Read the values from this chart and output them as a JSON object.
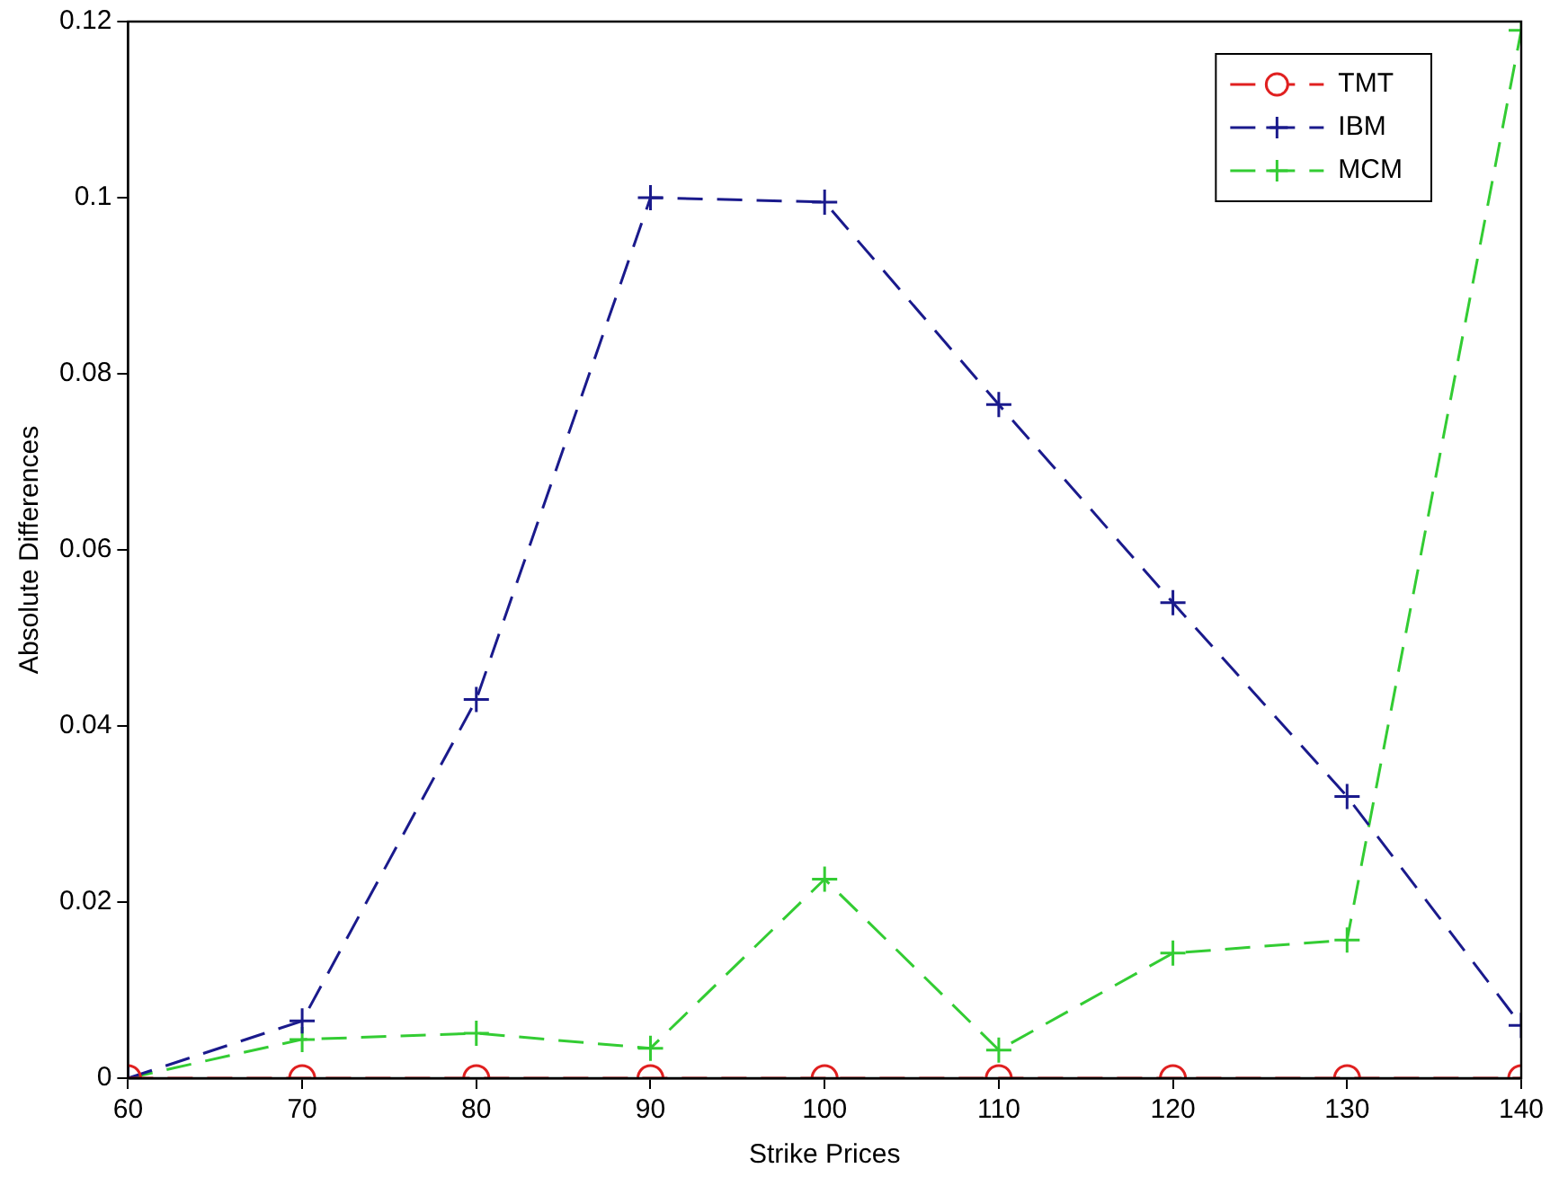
{
  "chart_data": {
    "type": "line",
    "xlabel": "Strike Prices",
    "ylabel": "Absolute Differences",
    "x": [
      60,
      70,
      80,
      90,
      100,
      110,
      120,
      130,
      140
    ],
    "series": [
      {
        "name": "TMT",
        "color": "#e02020",
        "marker": "circle",
        "values": [
          0,
          0,
          0,
          0,
          0,
          0,
          0,
          0,
          0
        ]
      },
      {
        "name": "IBM",
        "color": "#1a1a8c",
        "marker": "cross",
        "values": [
          0,
          0.0065,
          0.043,
          0.1,
          0.0995,
          0.0765,
          0.054,
          0.032,
          0.006
        ]
      },
      {
        "name": "MCM",
        "color": "#33cc33",
        "marker": "cross",
        "values": [
          0,
          0.0044,
          0.0051,
          0.0034,
          0.0226,
          0.0032,
          0.0142,
          0.0157,
          0.119
        ]
      }
    ],
    "xlim": [
      60,
      140
    ],
    "xticks": [
      60,
      70,
      80,
      90,
      100,
      110,
      120,
      130,
      140
    ],
    "ylim": [
      0,
      0.12
    ],
    "yticks": [
      0,
      0.02,
      0.04,
      0.06,
      0.08,
      0.1,
      0.12
    ],
    "grid": false,
    "legend": "top right",
    "line_style": "dashed"
  }
}
